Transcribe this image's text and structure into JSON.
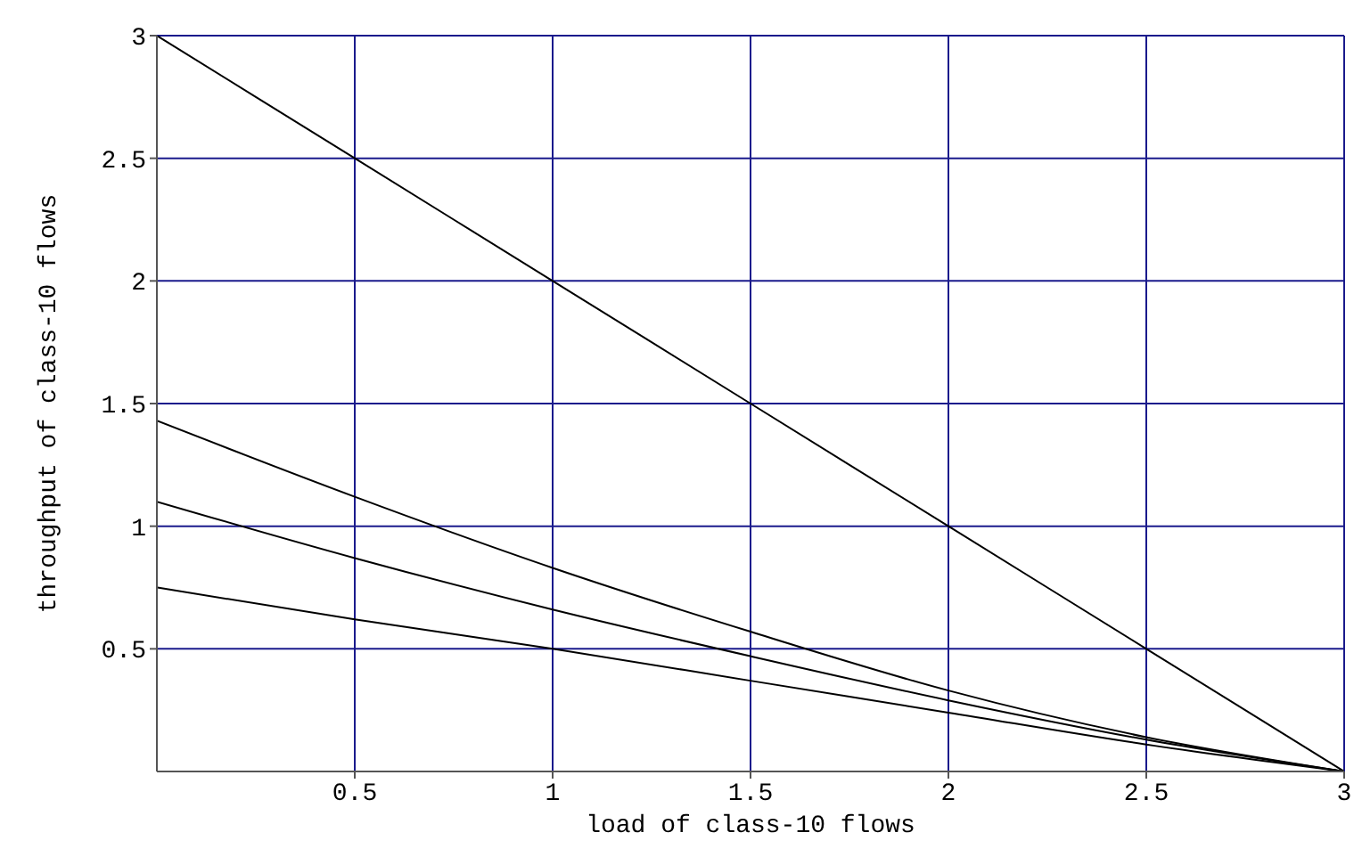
{
  "chart_data": {
    "type": "line",
    "xlabel": "load of class-10 flows",
    "ylabel": "throughput of class-10 flows",
    "x": [
      0,
      0.5,
      1,
      1.5,
      2,
      2.5,
      3
    ],
    "series": [
      {
        "color": "#000000",
        "values": [
          3,
          2.5,
          2,
          1.5,
          1,
          0.5,
          0
        ]
      },
      {
        "color": "#000000",
        "values": [
          1.43,
          1.12,
          0.83,
          0.57,
          0.33,
          0.14,
          0
        ]
      },
      {
        "color": "#000000",
        "values": [
          1.1,
          0.87,
          0.66,
          0.47,
          0.29,
          0.13,
          0
        ]
      },
      {
        "color": "#000000",
        "values": [
          0.75,
          0.62,
          0.5,
          0.37,
          0.24,
          0.11,
          0
        ]
      }
    ],
    "xlim": [
      0,
      3
    ],
    "ylim": [
      0,
      3
    ],
    "xticks": [
      0.5,
      1,
      1.5,
      2,
      2.5,
      3
    ],
    "yticks": [
      0.5,
      1,
      1.5,
      2,
      2.5,
      3
    ],
    "grid": true,
    "marker": "none",
    "line_style": "solid"
  }
}
